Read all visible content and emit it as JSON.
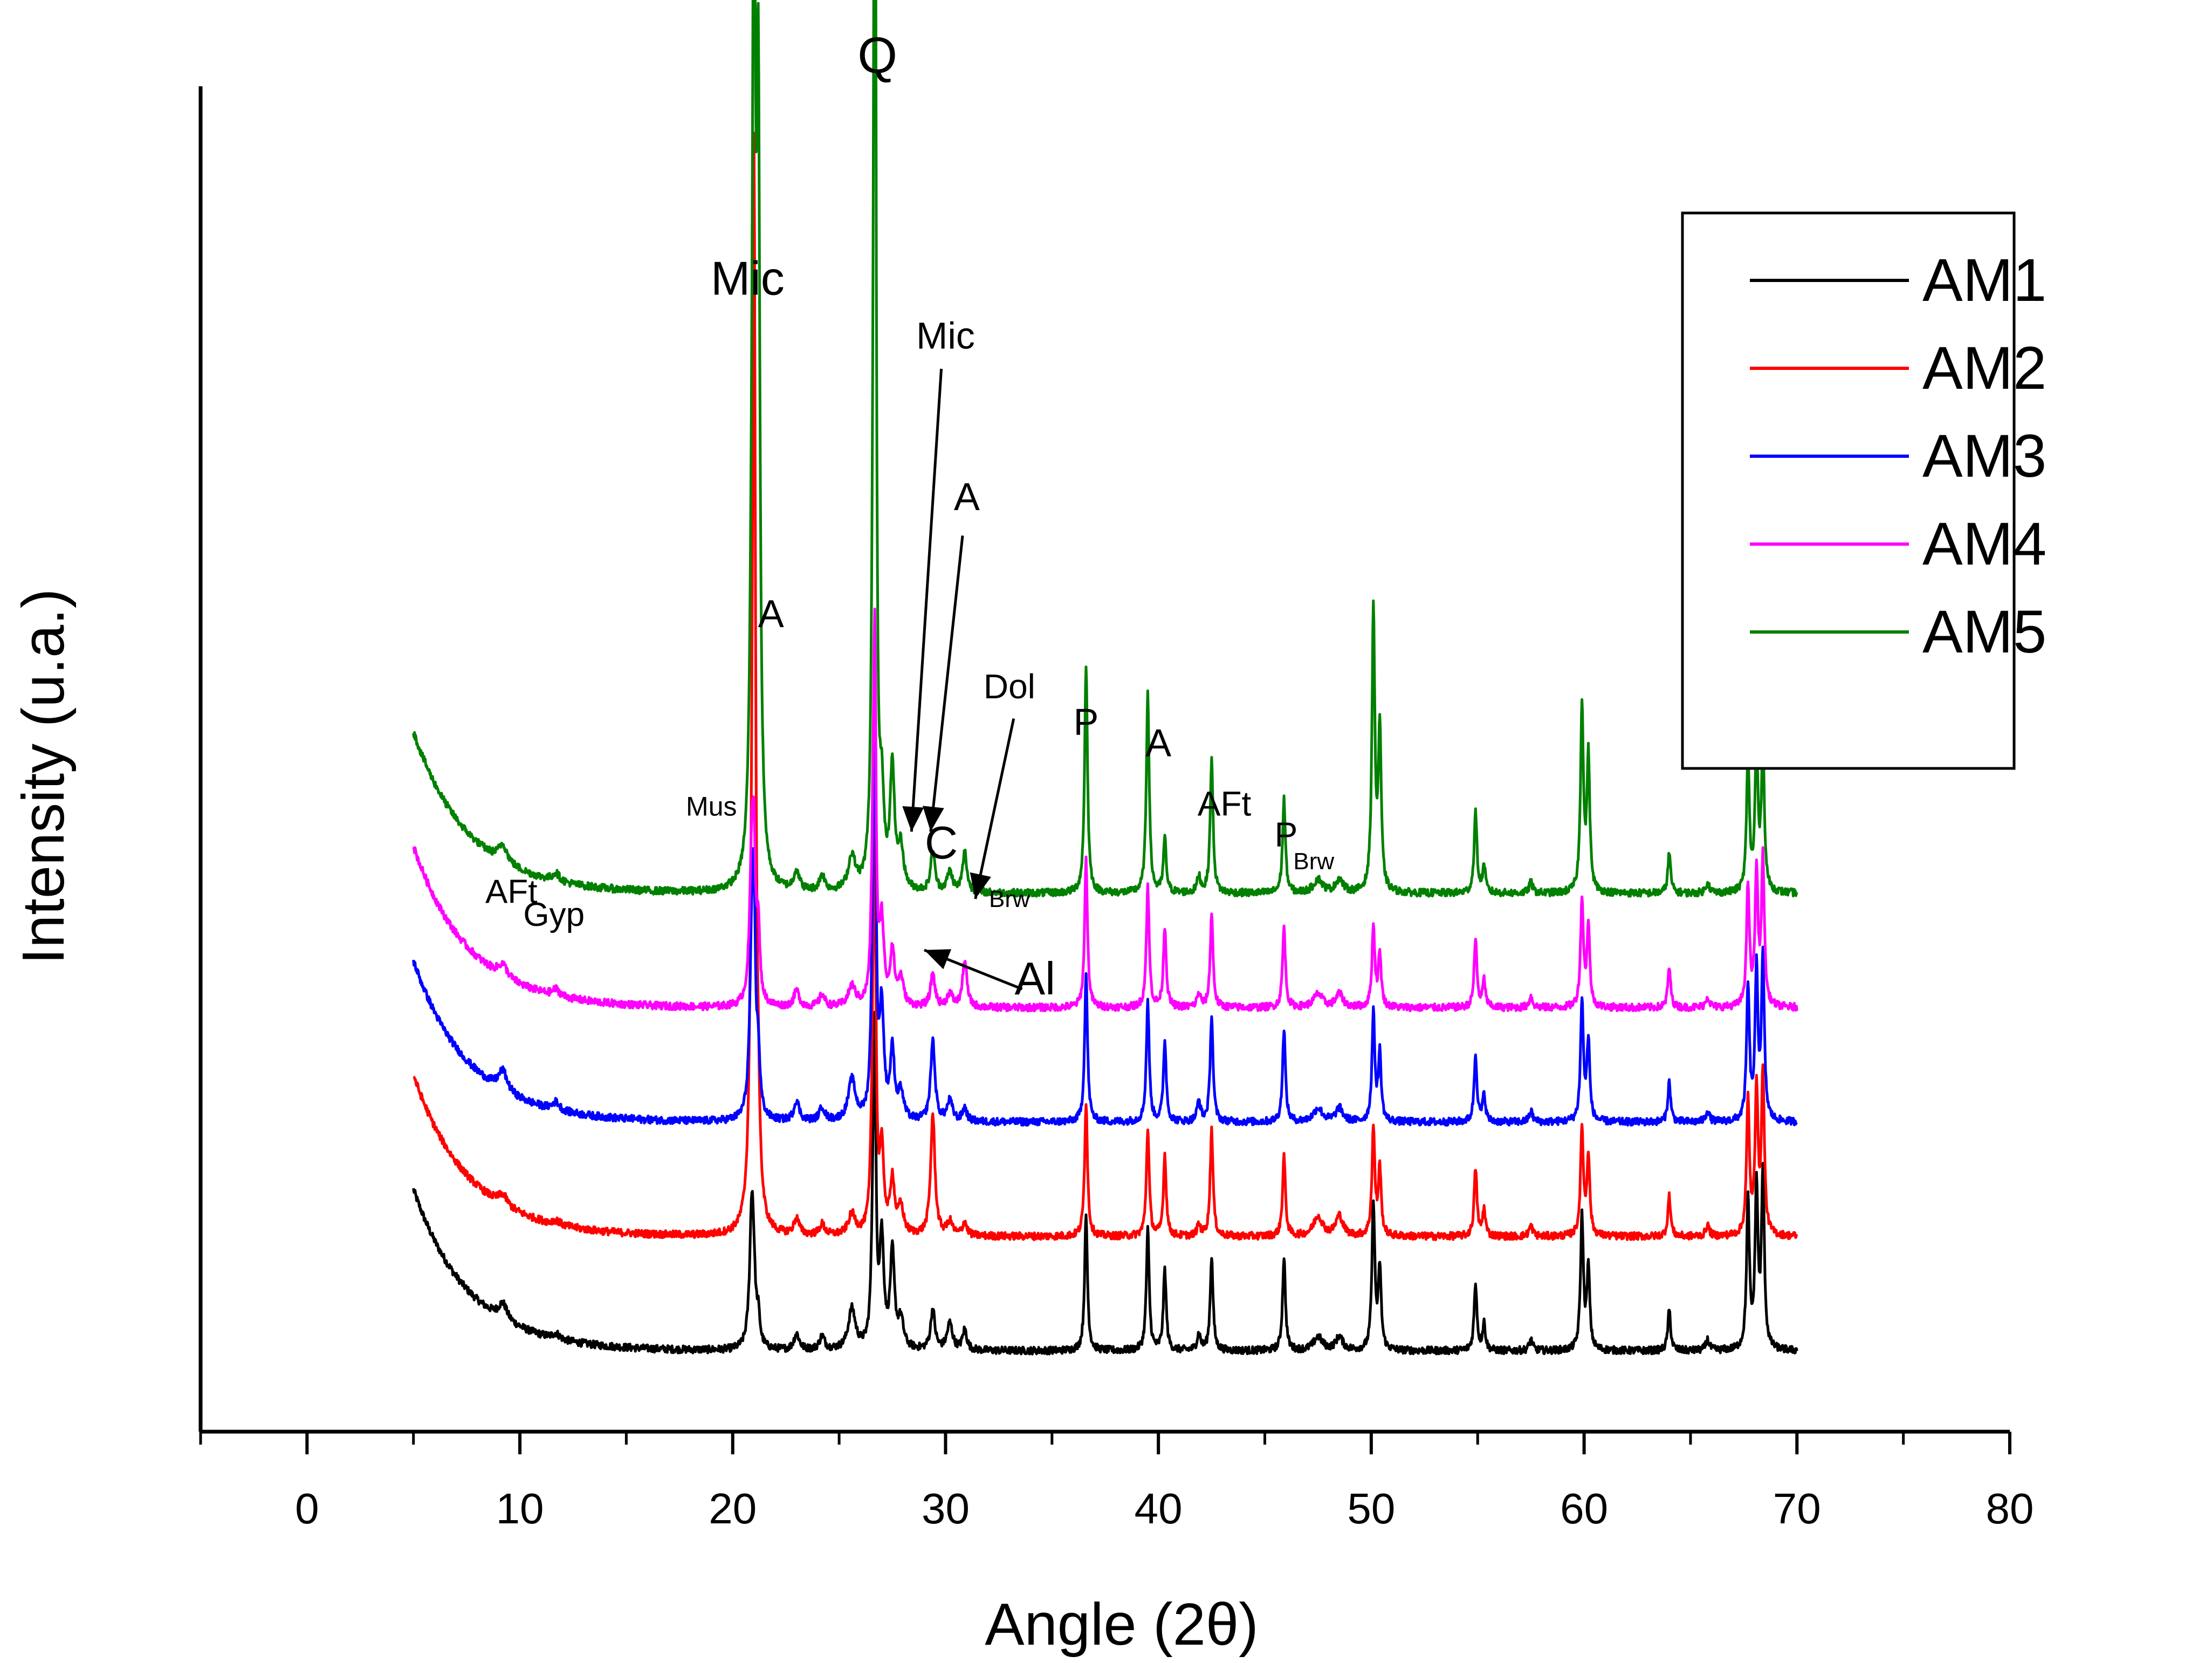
{
  "chart_data": {
    "type": "line",
    "title": "",
    "xlabel": "Angle  (2θ)",
    "ylabel": "Intensity (u.a.)",
    "xlim": [
      -5,
      80
    ],
    "ylim": [
      0,
      100
    ],
    "x_ticks": [
      0,
      10,
      20,
      30,
      40,
      50,
      60,
      70,
      80
    ],
    "x_tick_labels": [
      "0",
      "10",
      "20",
      "30",
      "40",
      "50",
      "60",
      "70",
      "80"
    ],
    "legend": {
      "position": "top-right",
      "entries": [
        "AM1",
        "AM2",
        "AM3",
        "AM4",
        "AM5"
      ]
    },
    "x_range_data": [
      5,
      70
    ],
    "series": [
      {
        "name": "AM1",
        "color": "#000000",
        "baseline": 6,
        "start_rise": 12
      },
      {
        "name": "AM2",
        "color": "#ff0000",
        "baseline": 14.5,
        "start_rise": 12
      },
      {
        "name": "AM3",
        "color": "#0000ff",
        "baseline": 23,
        "start_rise": 12
      },
      {
        "name": "AM4",
        "color": "#ff00ff",
        "baseline": 31.5,
        "start_rise": 12
      },
      {
        "name": "AM5",
        "color": "#008000",
        "baseline": 40,
        "start_rise": 12
      }
    ],
    "peaks": [
      {
        "x": 9.2,
        "w": 0.25,
        "h": [
          1.2,
          0.8,
          1.5,
          0.9,
          1.3
        ]
      },
      {
        "x": 11.7,
        "w": 0.2,
        "h": [
          0.4,
          0.3,
          0.6,
          0.5,
          0.6
        ]
      },
      {
        "x": 20.9,
        "w": 0.12,
        "h": [
          11,
          12,
          12,
          11,
          12
        ]
      },
      {
        "x": 21.0,
        "w": 0.08,
        "h": [
          2,
          74,
          12,
          8,
          70
        ]
      },
      {
        "x": 21.2,
        "w": 0.09,
        "h": [
          2,
          5,
          4,
          5,
          55
        ]
      },
      {
        "x": 23.0,
        "w": 0.15,
        "h": [
          1.2,
          1.2,
          1.5,
          1.2,
          1.5
        ]
      },
      {
        "x": 24.2,
        "w": 0.15,
        "h": [
          1,
          0.8,
          1,
          0.9,
          1.2
        ]
      },
      {
        "x": 25.6,
        "w": 0.2,
        "h": [
          3,
          1.5,
          3,
          1.5,
          2.5
        ]
      },
      {
        "x": 26.6,
        "w": 0.09,
        "h": [
          10,
          14,
          14,
          12,
          16
        ]
      },
      {
        "x": 26.68,
        "w": 0.06,
        "h": [
          18,
          22,
          24,
          22,
          95
        ]
      },
      {
        "x": 27.0,
        "w": 0.12,
        "h": [
          8,
          6,
          8,
          6,
          6
        ]
      },
      {
        "x": 27.5,
        "w": 0.12,
        "h": [
          7,
          4,
          5,
          4,
          9
        ]
      },
      {
        "x": 27.9,
        "w": 0.15,
        "h": [
          2,
          2,
          2,
          2,
          3
        ]
      },
      {
        "x": 29.4,
        "w": 0.12,
        "h": [
          3,
          9,
          6,
          2.5,
          3
        ]
      },
      {
        "x": 30.2,
        "w": 0.15,
        "h": [
          2,
          1,
          1.5,
          1,
          1.5
        ]
      },
      {
        "x": 30.9,
        "w": 0.12,
        "h": [
          1.5,
          1,
          1,
          3.5,
          3
        ]
      },
      {
        "x": 36.6,
        "w": 0.08,
        "h": [
          10,
          10,
          11,
          11,
          17
        ]
      },
      {
        "x": 39.5,
        "w": 0.08,
        "h": [
          9,
          8,
          9,
          9,
          15
        ]
      },
      {
        "x": 40.3,
        "w": 0.08,
        "h": [
          6,
          6,
          6,
          6,
          4
        ]
      },
      {
        "x": 41.9,
        "w": 0.1,
        "h": [
          1.2,
          0.8,
          1.5,
          1,
          1.2
        ]
      },
      {
        "x": 42.5,
        "w": 0.08,
        "h": [
          7,
          8,
          8,
          7,
          10
        ]
      },
      {
        "x": 45.9,
        "w": 0.08,
        "h": [
          7,
          6,
          7,
          6,
          7
        ]
      },
      {
        "x": 47.5,
        "w": 0.25,
        "h": [
          1,
          1.5,
          1,
          1,
          1
        ]
      },
      {
        "x": 48.5,
        "w": 0.2,
        "h": [
          1,
          1.5,
          1,
          1,
          1
        ]
      },
      {
        "x": 50.1,
        "w": 0.08,
        "h": [
          11,
          8,
          8,
          6,
          21
        ]
      },
      {
        "x": 50.4,
        "w": 0.08,
        "h": [
          6,
          5,
          5,
          4,
          12
        ]
      },
      {
        "x": 54.9,
        "w": 0.08,
        "h": [
          5,
          5,
          5,
          5,
          6
        ]
      },
      {
        "x": 55.3,
        "w": 0.08,
        "h": [
          2,
          2,
          2,
          2,
          2
        ]
      },
      {
        "x": 57.5,
        "w": 0.1,
        "h": [
          0.8,
          0.8,
          0.8,
          0.8,
          0.8
        ]
      },
      {
        "x": 59.9,
        "w": 0.08,
        "h": [
          10,
          8,
          9,
          8,
          14
        ]
      },
      {
        "x": 60.2,
        "w": 0.08,
        "h": [
          6,
          6,
          6,
          6,
          10
        ]
      },
      {
        "x": 64.0,
        "w": 0.08,
        "h": [
          3,
          3,
          3,
          3,
          3
        ]
      },
      {
        "x": 65.8,
        "w": 0.1,
        "h": [
          0.8,
          0.8,
          0.8,
          0.8,
          0.8
        ]
      },
      {
        "x": 67.7,
        "w": 0.08,
        "h": [
          11,
          10,
          10,
          9,
          10
        ]
      },
      {
        "x": 68.1,
        "w": 0.08,
        "h": [
          12,
          11,
          11,
          10,
          11
        ]
      },
      {
        "x": 68.4,
        "w": 0.08,
        "h": [
          13,
          12,
          12,
          11,
          11
        ]
      }
    ],
    "annotations": [
      {
        "text": "Q",
        "x": 26.8,
        "y": 101,
        "size": 95
      },
      {
        "text": "Mic",
        "x": 20.7,
        "y": 84.5,
        "size": 88
      },
      {
        "text": "Mic",
        "x": 30.0,
        "y": 80.5,
        "size": 70
      },
      {
        "text": "A",
        "x": 31.0,
        "y": 68.5,
        "size": 72
      },
      {
        "text": "A",
        "x": 21.8,
        "y": 59.8,
        "size": 72
      },
      {
        "text": "Dol",
        "x": 33.0,
        "y": 54.5,
        "size": 64
      },
      {
        "text": "P",
        "x": 36.6,
        "y": 51.8,
        "size": 70
      },
      {
        "text": "A",
        "x": 40.0,
        "y": 50.2,
        "size": 72
      },
      {
        "text": "AFt",
        "x": 43.1,
        "y": 45.8,
        "size": 64
      },
      {
        "text": "Mus",
        "x": 19.0,
        "y": 45.8,
        "size": 50
      },
      {
        "text": "C",
        "x": 29.8,
        "y": 42.6,
        "size": 85
      },
      {
        "text": "P",
        "x": 46.0,
        "y": 43.5,
        "size": 64
      },
      {
        "text": "Brw",
        "x": 47.3,
        "y": 41.8,
        "size": 44
      },
      {
        "text": "Brw",
        "x": 33.0,
        "y": 39.0,
        "size": 44
      },
      {
        "text": "AFt",
        "x": 9.6,
        "y": 39.3,
        "size": 62
      },
      {
        "text": "Gyp",
        "x": 11.6,
        "y": 37.6,
        "size": 62
      },
      {
        "text": "Al",
        "x": 34.2,
        "y": 32.5,
        "size": 85
      }
    ]
  }
}
